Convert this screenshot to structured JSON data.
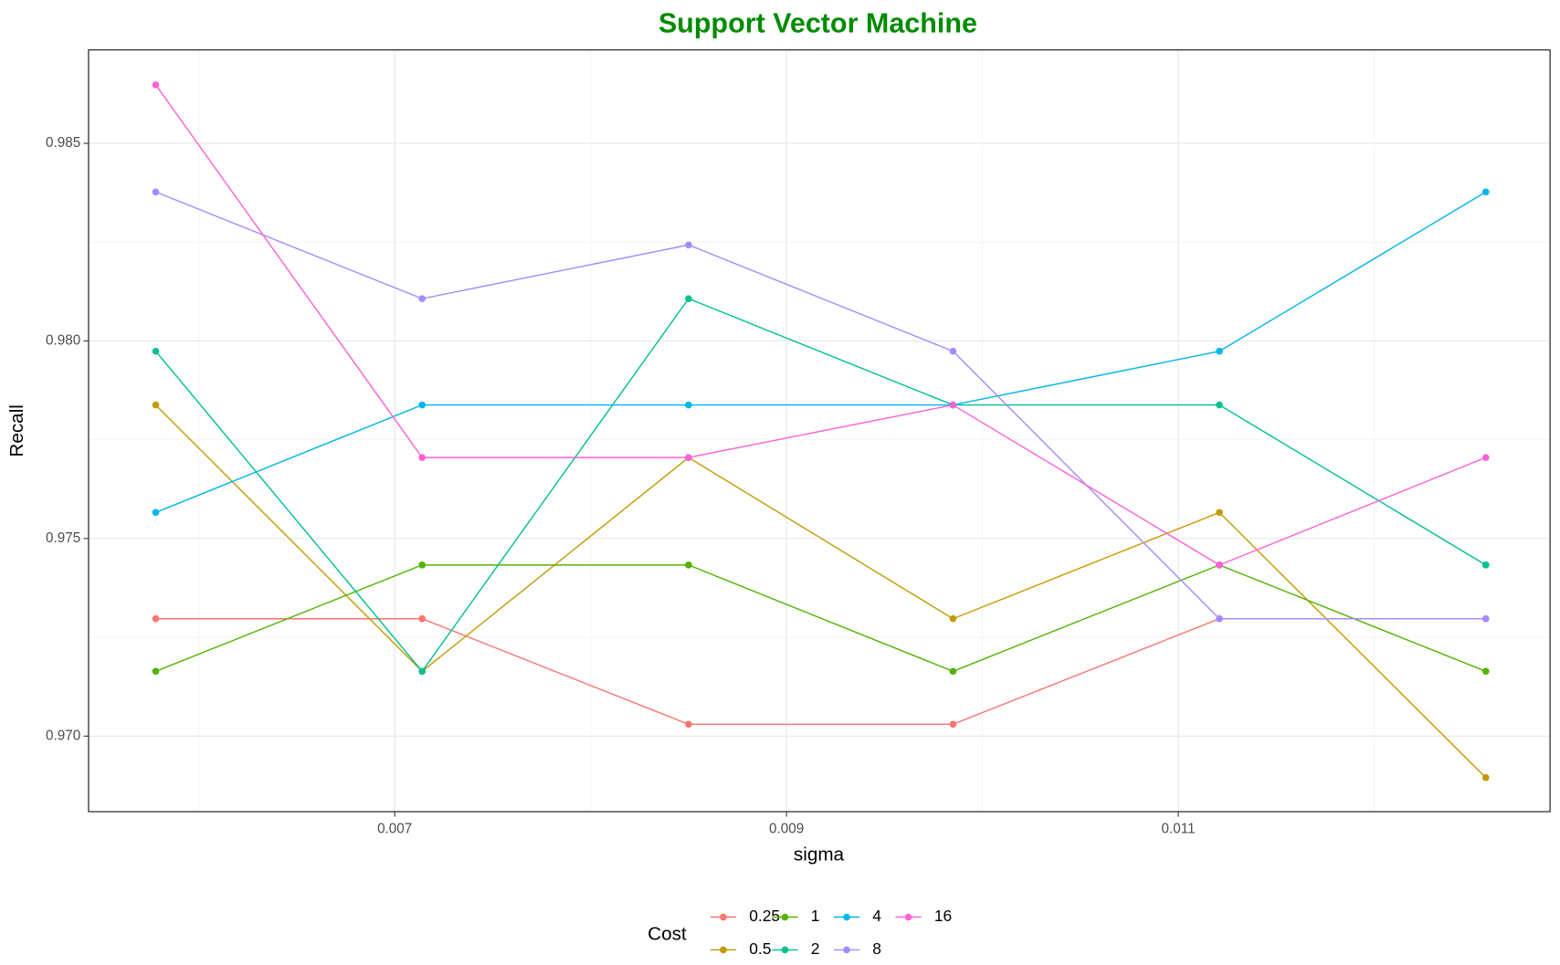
{
  "chart_data": {
    "type": "line",
    "title": "Support Vector Machine",
    "title_color": "#008B00",
    "x_label": "sigma",
    "y_label": "Recall",
    "legend_title": "Cost",
    "legend_position": "bottom",
    "x": [
      0.00578,
      0.00714,
      0.0085,
      0.00985,
      0.01121,
      0.01257
    ],
    "series": [
      {
        "name": "0.25",
        "color": "#F8766D",
        "values": [
          0.97297,
          0.97297,
          0.9703,
          0.9703,
          0.97297,
          0.97297
        ]
      },
      {
        "name": "0.5",
        "color": "#C49A00",
        "values": [
          0.97838,
          0.97164,
          0.97705,
          0.97297,
          0.97566,
          0.96895
        ]
      },
      {
        "name": "1",
        "color": "#53B400",
        "values": [
          0.97164,
          0.97433,
          0.97433,
          0.97164,
          0.97433,
          0.97164
        ]
      },
      {
        "name": "2",
        "color": "#00C094",
        "values": [
          0.97974,
          0.97164,
          0.98107,
          0.97838,
          0.97838,
          0.97433
        ]
      },
      {
        "name": "4",
        "color": "#00B6EB",
        "values": [
          0.97566,
          0.97838,
          0.97838,
          0.97838,
          0.97974,
          0.98377
        ]
      },
      {
        "name": "8",
        "color": "#A58AFF",
        "values": [
          0.98377,
          0.98107,
          0.98243,
          0.97974,
          0.97297,
          0.97297
        ]
      },
      {
        "name": "16",
        "color": "#FB61D7",
        "values": [
          0.98648,
          0.97705,
          0.97705,
          0.97838,
          0.97433,
          0.97705
        ]
      }
    ],
    "xlim": [
      0.005437,
      0.012898
    ],
    "ylim": [
      0.968088,
      0.987365
    ],
    "xticks": [
      0.007,
      0.009,
      0.011
    ],
    "yticks": [
      {
        "value": 0.97,
        "label": "0.970"
      },
      {
        "value": 0.975,
        "label": "0.975"
      },
      {
        "value": 0.98,
        "label": "0.980"
      },
      {
        "value": 0.985,
        "label": "0.985"
      }
    ],
    "x_minor_ticks": [
      0.006,
      0.008,
      0.01,
      0.012
    ],
    "y_minor_ticks": [
      0.9725,
      0.9775,
      0.9825
    ],
    "grid": true
  }
}
